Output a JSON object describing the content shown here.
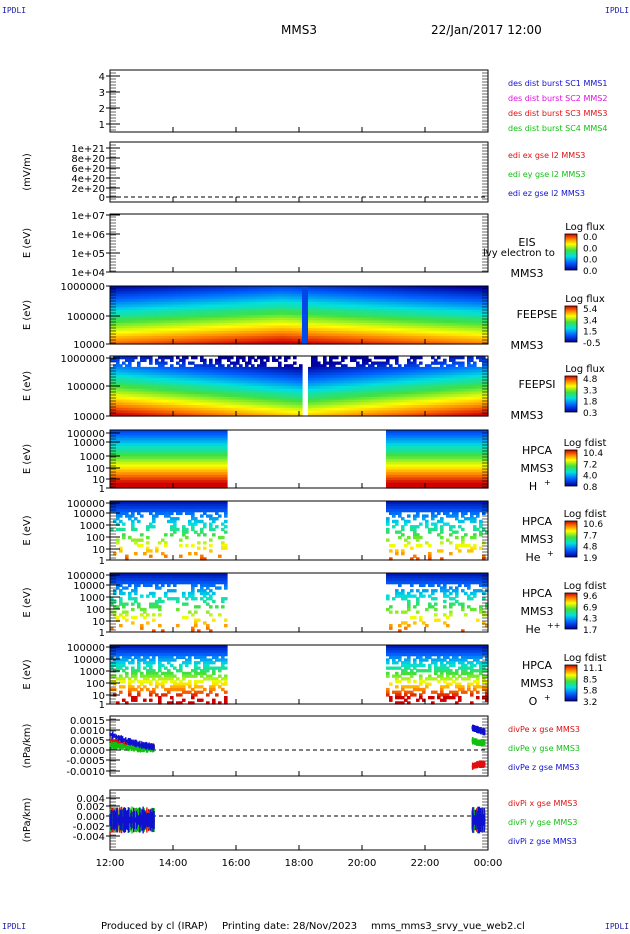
{
  "corner_label": "IPDLI",
  "header": {
    "spacecraft": "MMS3",
    "datetime": "22/Jan/2017 12:00"
  },
  "footer": {
    "produced_by": "Produced by cl (IRAP)",
    "printing_date": "Printing date: 28/Nov/2023",
    "filename": "mms_mms3_srvy_vue_web2.cl"
  },
  "colors": {
    "red": "#e01010",
    "green": "#10c010",
    "blue": "#1010d0",
    "magenta": "#e010e0",
    "black": "#000000"
  },
  "chart_data": {
    "type": "heatmap",
    "x_ticks": [
      "12:00",
      "14:00",
      "16:00",
      "18:00",
      "20:00",
      "22:00",
      "00:00"
    ],
    "panels": [
      {
        "type": "line",
        "yticks": [
          "4",
          "3",
          "2",
          "1"
        ],
        "ylim": [
          0.5,
          4.5
        ],
        "legend": [
          {
            "text": "des dist burst SC1 MMS1",
            "color": "#1010d0"
          },
          {
            "text": "des dist burst SC2 MMS2",
            "color": "#e010e0"
          },
          {
            "text": "des dist burst SC3 MMS3",
            "color": "#e01010"
          },
          {
            "text": "des dist burst SC4 MMS4",
            "color": "#10c010"
          }
        ]
      },
      {
        "type": "line",
        "ylabel": "(mV/m)",
        "yticks": [
          "1e+21",
          "8e+20",
          "6e+20",
          "4e+20",
          "2e+20",
          "0"
        ],
        "ylim": [
          0,
          1e+21
        ],
        "legend": [
          {
            "text": "edi ex gse l2 MMS3",
            "color": "#e01010"
          },
          {
            "text": "edi ey gse l2 MMS3",
            "color": "#10c010"
          },
          {
            "text": "edi ez gse l2 MMS3",
            "color": "#1010d0"
          }
        ]
      },
      {
        "type": "heatmap",
        "ylabel": "E (eV)",
        "yticks": [
          "1e+07",
          "1e+06",
          "1e+05",
          "1e+04"
        ],
        "ylim": [
          10000.0,
          10000000.0
        ],
        "log_y": true,
        "instrument": [
          "EIS",
          "MMS3"
        ],
        "overlay_text": "lvy electron to",
        "cb_title": "Log flux",
        "cb_ticks": [
          "0.0",
          "0.0",
          "0.0",
          "0.0"
        ]
      },
      {
        "type": "heatmap",
        "ylabel": "E (eV)",
        "yticks": [
          "1000000",
          "100000",
          "10000"
        ],
        "ylim": [
          10000.0,
          1000000.0
        ],
        "log_y": true,
        "instrument": [
          "FEEPSE",
          "MMS3"
        ],
        "cb_title": "Log flux",
        "cb_ticks": [
          "5.4",
          "3.4",
          "1.5",
          "-0.5"
        ],
        "time_coverage": [
          [
            12.0,
            24.0
          ]
        ]
      },
      {
        "type": "heatmap",
        "ylabel": "E (eV)",
        "yticks": [
          "1000000",
          "100000",
          "10000"
        ],
        "ylim": [
          10000.0,
          1000000.0
        ],
        "log_y": true,
        "instrument": [
          "FEEPSI",
          "MMS3"
        ],
        "cb_title": "Log flux",
        "cb_ticks": [
          "4.8",
          "3.3",
          "1.8",
          "0.3"
        ],
        "time_coverage": [
          [
            12.0,
            24.0
          ]
        ]
      },
      {
        "type": "heatmap",
        "ylabel": "E (eV)",
        "yticks": [
          "100000",
          "10000",
          "1000",
          "100",
          "10",
          "1"
        ],
        "ylim": [
          1,
          100000.0
        ],
        "log_y": true,
        "instrument": [
          "HPCA",
          "MMS3"
        ],
        "species": "H",
        "species_sup": "+",
        "cb_title": "Log fdist",
        "cb_ticks": [
          "10.4",
          "7.2",
          "4.0",
          "0.8"
        ],
        "time_coverage": [
          [
            12.0,
            15.65
          ],
          [
            20.8,
            24.0
          ]
        ]
      },
      {
        "type": "heatmap",
        "ylabel": "E (eV)",
        "yticks": [
          "100000",
          "10000",
          "1000",
          "100",
          "10",
          "1"
        ],
        "ylim": [
          1,
          100000.0
        ],
        "log_y": true,
        "instrument": [
          "HPCA",
          "MMS3"
        ],
        "species": "He",
        "species_sup": "+",
        "cb_title": "Log fdist",
        "cb_ticks": [
          "10.6",
          "7.7",
          "4.8",
          "1.9"
        ],
        "time_coverage": [
          [
            12.0,
            15.65
          ],
          [
            20.8,
            24.0
          ]
        ]
      },
      {
        "type": "heatmap",
        "ylabel": "E (eV)",
        "yticks": [
          "100000",
          "10000",
          "1000",
          "100",
          "10",
          "1"
        ],
        "ylim": [
          1,
          100000.0
        ],
        "log_y": true,
        "instrument": [
          "HPCA",
          "MMS3"
        ],
        "species": "He",
        "species_sup": "++",
        "cb_title": "Log fdist",
        "cb_ticks": [
          "9.6",
          "6.9",
          "4.3",
          "1.7"
        ],
        "time_coverage": [
          [
            12.0,
            15.65
          ],
          [
            20.8,
            24.0
          ]
        ]
      },
      {
        "type": "heatmap",
        "ylabel": "E (eV)",
        "yticks": [
          "100000",
          "10000",
          "1000",
          "100",
          "10",
          "1"
        ],
        "ylim": [
          1,
          100000.0
        ],
        "log_y": true,
        "instrument": [
          "HPCA",
          "MMS3"
        ],
        "species": "O",
        "species_sup": "+",
        "cb_title": "Log fdist",
        "cb_ticks": [
          "11.1",
          "8.5",
          "5.8",
          "3.2"
        ],
        "time_coverage": [
          [
            12.0,
            15.65
          ],
          [
            20.8,
            24.0
          ]
        ]
      },
      {
        "type": "line",
        "ylabel": "(nPa/km)",
        "yticks": [
          "0.0015",
          "0.0010",
          "0.0005",
          "0.0000",
          "-0.0005",
          "-0.0010"
        ],
        "ylim": [
          -0.00125,
          0.00155
        ],
        "legend": [
          {
            "text": "divPe x gse MMS3",
            "color": "#e01010"
          },
          {
            "text": "divPe y gse MMS3",
            "color": "#10c010"
          },
          {
            "text": "divPe z gse MMS3",
            "color": "#1010d0"
          }
        ],
        "series": [
          {
            "name": "divPe x gse MMS3",
            "t": [
              12.0,
              12.5,
              13.0,
              13.4,
              23.5,
              23.7,
              23.9
            ],
            "v": [
              0.0004,
              0.0002,
              0.0001,
              0.0001,
              -0.0008,
              -0.0007,
              -0.0007
            ]
          },
          {
            "name": "divPe y gse MMS3",
            "t": [
              12.0,
              12.5,
              13.0,
              13.4,
              23.5,
              23.7,
              23.9
            ],
            "v": [
              0.0002,
              0.0001,
              0.0,
              0.0,
              0.0004,
              0.0003,
              0.0003
            ]
          },
          {
            "name": "divPe z gse MMS3",
            "t": [
              12.0,
              12.5,
              13.0,
              13.4,
              23.5,
              23.7,
              23.9
            ],
            "v": [
              0.0007,
              0.0004,
              0.0002,
              0.0001,
              0.001,
              0.0009,
              0.0008
            ]
          }
        ]
      },
      {
        "type": "line",
        "ylabel": "(nPa/km)",
        "yticks": [
          "0.004",
          "0.002",
          "0.000",
          "-0.002",
          "-0.004"
        ],
        "ylim": [
          -0.0055,
          0.0055
        ],
        "legend": [
          {
            "text": "divPi x gse MMS3",
            "color": "#e01010"
          },
          {
            "text": "divPi y gse MMS3",
            "color": "#10c010"
          },
          {
            "text": "divPi z gse MMS3",
            "color": "#1010d0"
          }
        ],
        "series": [
          {
            "name": "divPi x gse MMS3",
            "t": [
              12.0,
              12.7,
              13.4,
              23.5,
              23.9
            ],
            "v": [
              0.0,
              0.0,
              0.0,
              0.0,
              0.0
            ]
          },
          {
            "name": "divPi y gse MMS3",
            "t": [
              12.0,
              12.7,
              13.4,
              23.5,
              23.9
            ],
            "v": [
              0.0,
              0.0,
              0.0,
              0.0,
              0.0
            ]
          },
          {
            "name": "divPi z gse MMS3",
            "t": [
              12.0,
              12.7,
              13.4,
              23.5,
              23.9
            ],
            "v": [
              0.0,
              0.0,
              0.0,
              0.0,
              0.0
            ]
          }
        ]
      }
    ]
  }
}
